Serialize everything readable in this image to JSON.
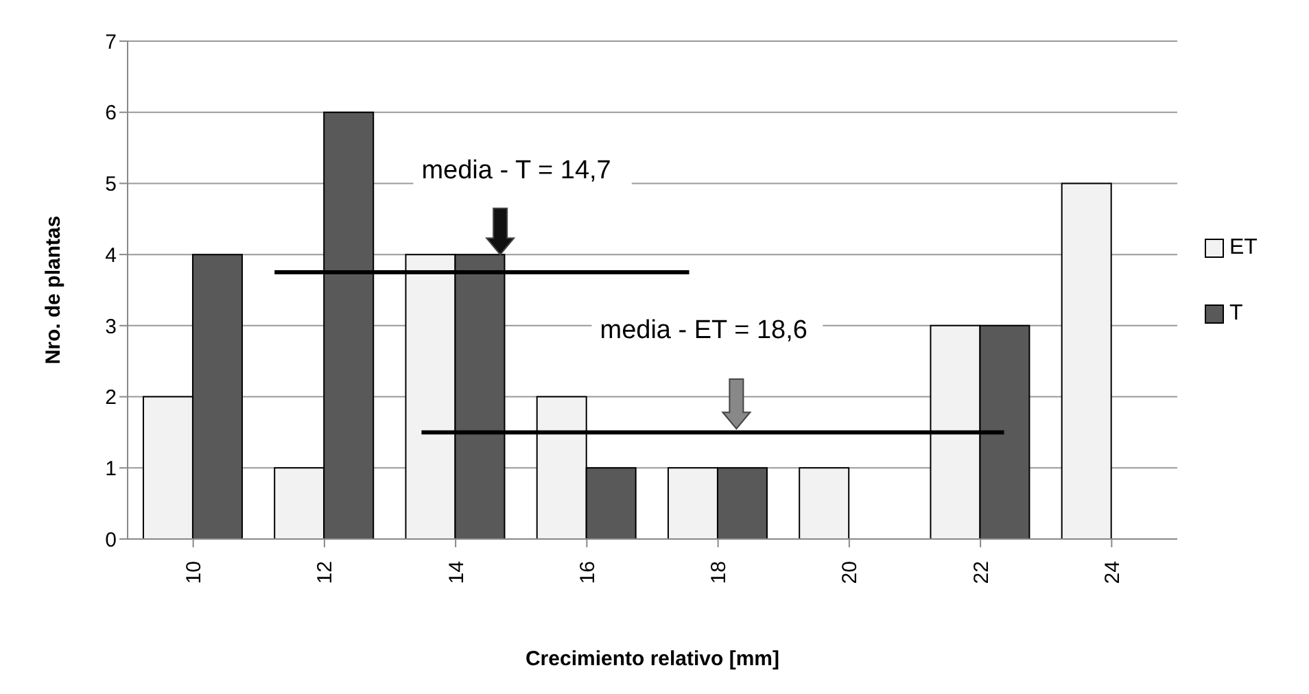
{
  "chart_data": {
    "type": "bar",
    "xlabel": "Crecimiento relativo [mm]",
    "ylabel": "Nro. de plantas",
    "categories": [
      "10",
      "12",
      "14",
      "16",
      "18",
      "20",
      "22",
      "24"
    ],
    "series": [
      {
        "name": "ET",
        "color": "#f2f2f2",
        "values": [
          2,
          1,
          4,
          2,
          1,
          1,
          3,
          5
        ]
      },
      {
        "name": "T",
        "color": "#595959",
        "values": [
          4,
          6,
          4,
          1,
          1,
          0,
          3,
          0
        ]
      }
    ],
    "ylim": [
      0,
      7
    ],
    "yticks": [
      0,
      1,
      2,
      3,
      4,
      5,
      6,
      7
    ],
    "grid": "y",
    "legend": "right",
    "ref_lines": [
      {
        "axis": "y",
        "value": 3.75,
        "color": "#000000"
      },
      {
        "axis": "y",
        "value": 1.5,
        "color": "#000000"
      }
    ],
    "annotations": [
      "media - T = 14,7",
      "media - ET = 18,6"
    ]
  }
}
